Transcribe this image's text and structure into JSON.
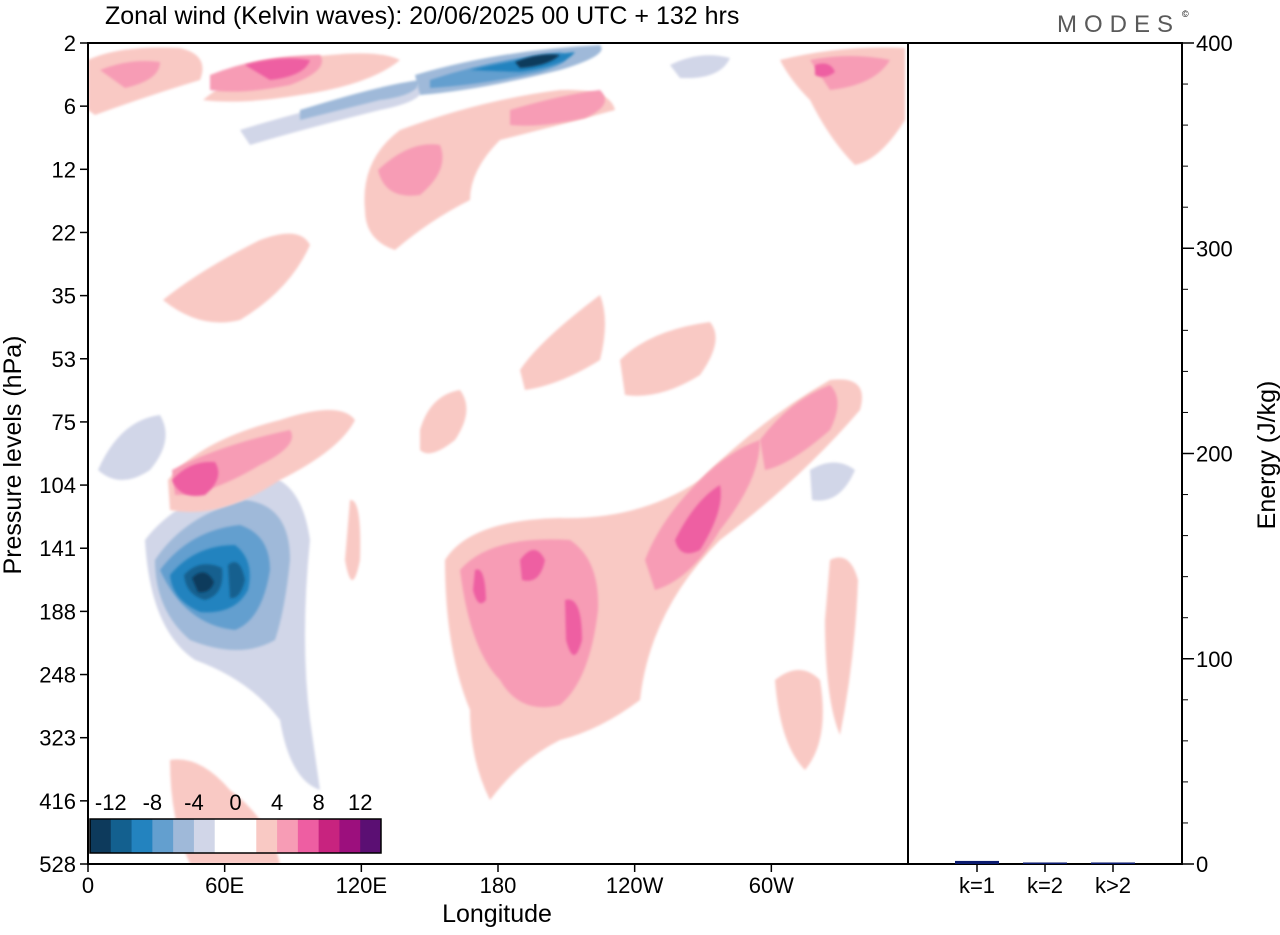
{
  "header": {
    "title": "Zonal wind (Kelvin waves):  20/06/2025  00 UTC  + 132 hrs",
    "brand": "MODES",
    "brand_mark": "©"
  },
  "chart_data": [
    {
      "type": "heatmap",
      "title": "Zonal wind (Kelvin waves):  20/06/2025  00 UTC  + 132 hrs",
      "xlabel": "Longitude",
      "ylabel": "Pressure levels (hPa)",
      "x_tick_labels": [
        "0",
        "60E",
        "120E",
        "180",
        "120W",
        "60W"
      ],
      "x_tick_values_deg_east": [
        0,
        60,
        120,
        180,
        240,
        300
      ],
      "xlim_deg_east": [
        0,
        360
      ],
      "y_levels_hPa": [
        2,
        6,
        12,
        22,
        35,
        53,
        75,
        104,
        141,
        188,
        248,
        323,
        416,
        528
      ],
      "y_axis": "pressure, increasing downward",
      "colorbar": {
        "tick_labels": [
          "-12",
          "-8",
          "-4",
          "0",
          "4",
          "8",
          "12"
        ],
        "colors": [
          "#0d3a5c",
          "#13608f",
          "#2383bf",
          "#639fcf",
          "#9fb9d9",
          "#d1d6e8",
          "#ffffff",
          "#ffffff",
          "#f9c9c4",
          "#f79cb5",
          "#ee5ea2",
          "#c8237f",
          "#9c0f7d",
          "#5b0f73"
        ]
      },
      "regions": [
        {
          "lon": 45,
          "p": 160,
          "value": -14,
          "note": "strongest easterly core"
        },
        {
          "lon": 50,
          "p": 200,
          "value": -10
        },
        {
          "lon": 75,
          "p": 320,
          "value": -4
        },
        {
          "lon": 30,
          "p": 80,
          "value": -4
        },
        {
          "lon": 50,
          "p": 110,
          "value": 8
        },
        {
          "lon": 200,
          "p": 170,
          "value": 8
        },
        {
          "lon": 270,
          "p": 130,
          "value": 8
        },
        {
          "lon": 310,
          "p": 90,
          "value": 6
        },
        {
          "lon": 120,
          "p": 6,
          "value": -6
        },
        {
          "lon": 200,
          "p": 3,
          "value": -12
        },
        {
          "lon": 60,
          "p": 4,
          "value": 6
        },
        {
          "lon": 320,
          "p": 4,
          "value": 6
        },
        {
          "lon": 135,
          "p": 12,
          "value": 6
        },
        {
          "lon": 215,
          "p": 5,
          "value": 6
        }
      ]
    },
    {
      "type": "bar",
      "categories": [
        "k=1",
        "k=2",
        "k>2"
      ],
      "values": [
        1.5,
        0.5,
        0.5
      ],
      "ylabel": "Energy (J/kg)",
      "ylim": [
        0,
        400
      ],
      "y_ticks": [
        0,
        100,
        200,
        300,
        400
      ],
      "bar_color": "#0a1a6e"
    }
  ]
}
